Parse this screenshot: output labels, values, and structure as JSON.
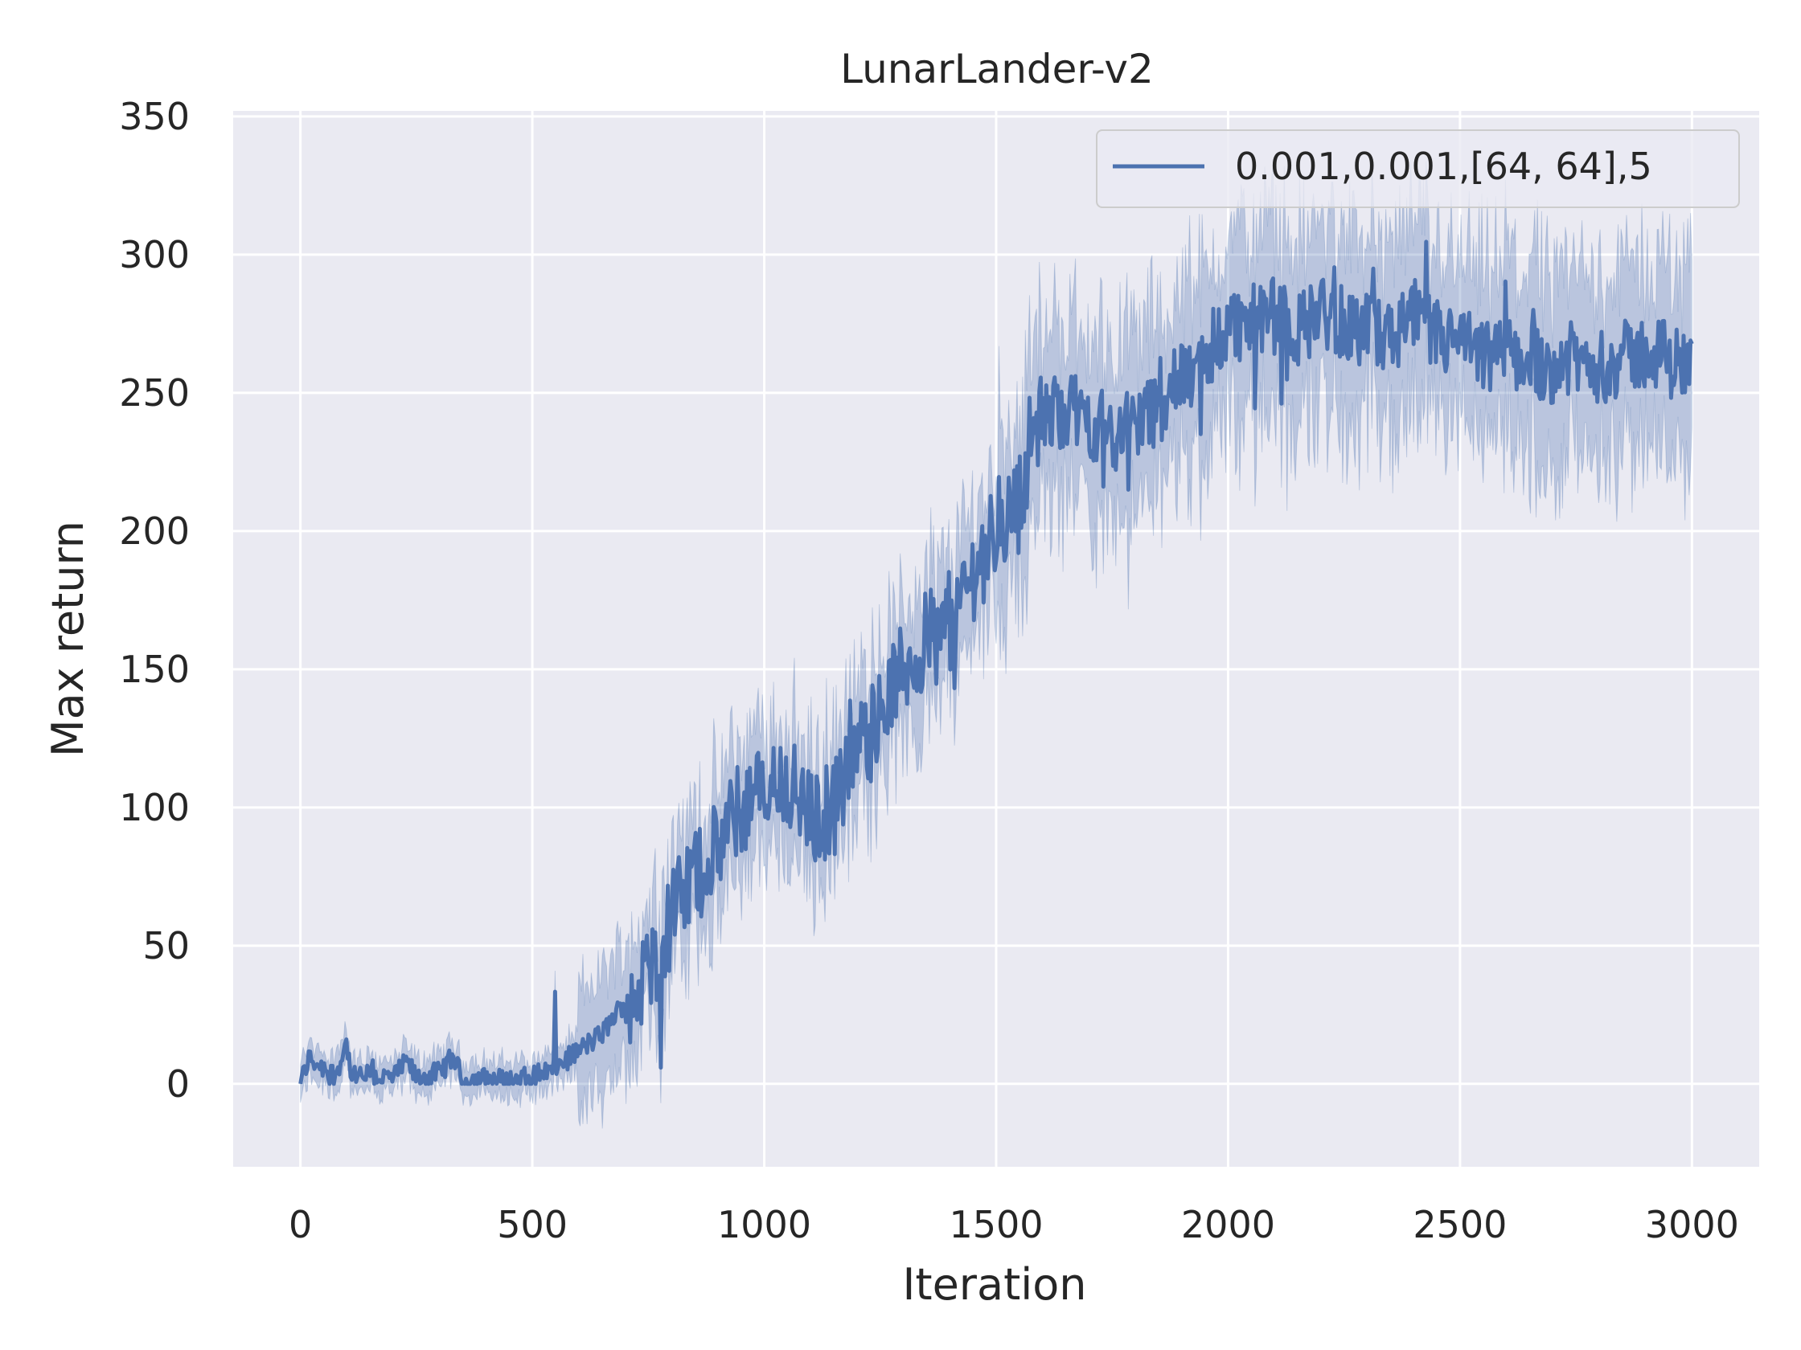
{
  "colors": {
    "plot_background": "#eaeaf2",
    "grid": "#ffffff",
    "series": "#4c72b0",
    "text": "#262626"
  },
  "chart_data": {
    "type": "line",
    "title": "LunarLander-v2",
    "xlabel": "Iteration",
    "ylabel": "Max return",
    "xlim": [
      -145,
      3145
    ],
    "ylim": [
      -30,
      352
    ],
    "xticks": [
      0,
      500,
      1000,
      1500,
      2000,
      2500,
      3000
    ],
    "yticks": [
      0,
      50,
      100,
      150,
      200,
      250,
      300,
      350
    ],
    "grid": true,
    "legend_position": "top-right",
    "series": [
      {
        "name": "0.001,0.001,[64, 64],5",
        "band": "shaded confidence interval",
        "points": [
          [
            0,
            0
          ],
          [
            10,
            5
          ],
          [
            20,
            10
          ],
          [
            30,
            8
          ],
          [
            50,
            6
          ],
          [
            75,
            3
          ],
          [
            100,
            15
          ],
          [
            110,
            2
          ],
          [
            150,
            3
          ],
          [
            200,
            2
          ],
          [
            230,
            8
          ],
          [
            250,
            2
          ],
          [
            300,
            4
          ],
          [
            330,
            10
          ],
          [
            350,
            1
          ],
          [
            400,
            2
          ],
          [
            450,
            1
          ],
          [
            500,
            3
          ],
          [
            550,
            6
          ],
          [
            600,
            12
          ],
          [
            650,
            18
          ],
          [
            700,
            30
          ],
          [
            750,
            40
          ],
          [
            800,
            60
          ],
          [
            850,
            75
          ],
          [
            900,
            85
          ],
          [
            950,
            100
          ],
          [
            1000,
            105
          ],
          [
            1050,
            110
          ],
          [
            1100,
            95
          ],
          [
            1150,
            100
          ],
          [
            1200,
            120
          ],
          [
            1250,
            135
          ],
          [
            1300,
            150
          ],
          [
            1350,
            160
          ],
          [
            1400,
            165
          ],
          [
            1450,
            185
          ],
          [
            1500,
            200
          ],
          [
            1550,
            210
          ],
          [
            1575,
            235
          ],
          [
            1600,
            240
          ],
          [
            1650,
            245
          ],
          [
            1700,
            240
          ],
          [
            1750,
            235
          ],
          [
            1800,
            240
          ],
          [
            1850,
            245
          ],
          [
            1900,
            255
          ],
          [
            1950,
            260
          ],
          [
            2000,
            275
          ],
          [
            2050,
            275
          ],
          [
            2100,
            278
          ],
          [
            2150,
            272
          ],
          [
            2200,
            280
          ],
          [
            2250,
            275
          ],
          [
            2300,
            272
          ],
          [
            2350,
            270
          ],
          [
            2400,
            275
          ],
          [
            2450,
            270
          ],
          [
            2500,
            268
          ],
          [
            2550,
            262
          ],
          [
            2600,
            265
          ],
          [
            2650,
            262
          ],
          [
            2700,
            260
          ],
          [
            2750,
            262
          ],
          [
            2800,
            260
          ],
          [
            2850,
            262
          ],
          [
            2900,
            265
          ],
          [
            2950,
            262
          ],
          [
            3000,
            260
          ]
        ]
      }
    ]
  }
}
